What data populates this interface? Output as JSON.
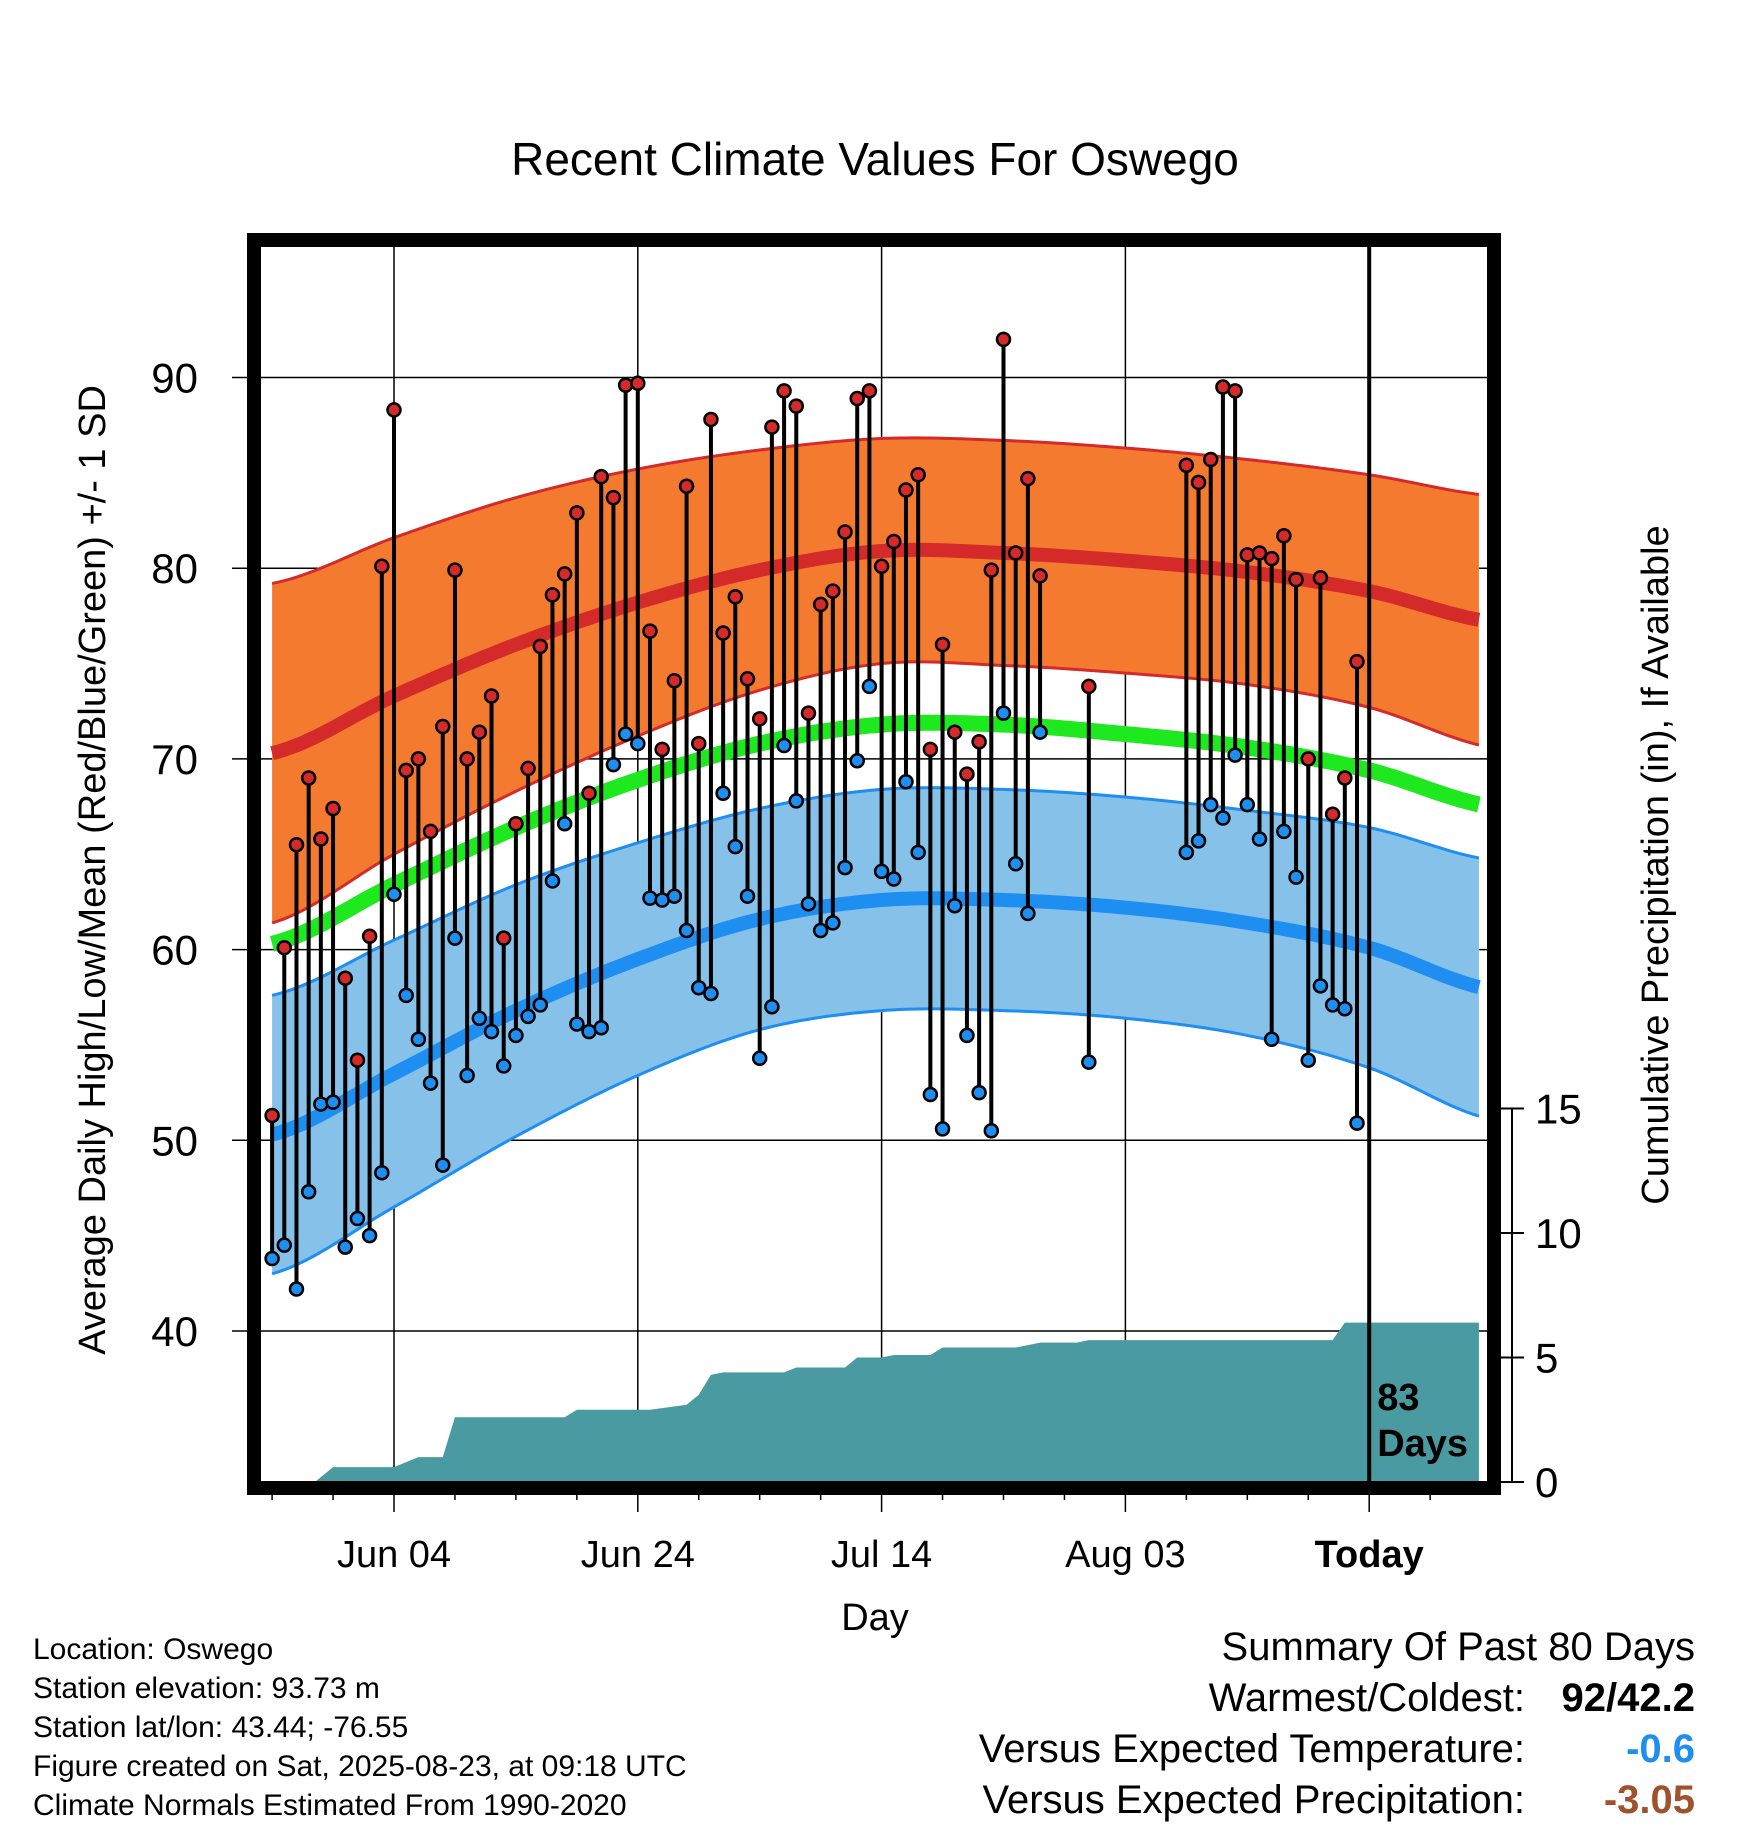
{
  "chart_data": {
    "type": "line",
    "title": "Recent Climate Values For Oswego",
    "xlabel": "Day",
    "ylabel": "Average Daily High/Low/Mean (Red/Blue/Green) +/- 1 SD",
    "y2label": "Cumulative Precipitation (in), If Available",
    "ylim": [
      32,
      98
    ],
    "y2lim": [
      0,
      38
    ],
    "xlim": [
      -12,
      88
    ],
    "x_ticks": [
      {
        "x": 0,
        "label": "Jun 04"
      },
      {
        "x": 20,
        "label": "Jun 24"
      },
      {
        "x": 40,
        "label": "Jul 14"
      },
      {
        "x": 60,
        "label": "Aug 03"
      },
      {
        "x": 80,
        "label": "Today"
      }
    ],
    "y_ticks": [
      40,
      50,
      60,
      70,
      80,
      90
    ],
    "y2_ticks": [
      0,
      5,
      10,
      15
    ],
    "today_x": 80,
    "today_annotation": [
      "83",
      "Days"
    ],
    "grid": true,
    "colors": {
      "high_band": "#f47a30",
      "high_line": "#d42a2a",
      "low_band": "#85c1e9",
      "low_line": "#1f8ef1",
      "mean_line": "#1ee81e",
      "precip": "#4a9ba1",
      "high_dot": "#d42a2a",
      "low_dot": "#1f8ef1"
    },
    "normals": [
      {
        "x": -10,
        "high": 70.3,
        "high_sd": 8.9,
        "low": 50.3,
        "low_sd": 7.3,
        "mean": 60.3
      },
      {
        "x": 0,
        "high": 73.3,
        "high_sd": 8.3,
        "low": 53.5,
        "low_sd": 7.0,
        "mean": 63.4
      },
      {
        "x": 10,
        "high": 76.0,
        "high_sd": 7.7,
        "low": 56.8,
        "low_sd": 6.6,
        "mean": 66.4
      },
      {
        "x": 20,
        "high": 78.2,
        "high_sd": 7.0,
        "low": 59.5,
        "low_sd": 6.1,
        "mean": 68.9
      },
      {
        "x": 30,
        "high": 79.9,
        "high_sd": 6.3,
        "low": 61.6,
        "low_sd": 5.8,
        "mean": 70.8
      },
      {
        "x": 40,
        "high": 80.9,
        "high_sd": 5.9,
        "low": 62.6,
        "low_sd": 5.8,
        "mean": 71.8
      },
      {
        "x": 50,
        "high": 80.8,
        "high_sd": 5.9,
        "low": 62.6,
        "low_sd": 5.8,
        "mean": 71.8
      },
      {
        "x": 60,
        "high": 80.4,
        "high_sd": 5.9,
        "low": 62.2,
        "low_sd": 5.8,
        "mean": 71.3
      },
      {
        "x": 70,
        "high": 79.8,
        "high_sd": 5.9,
        "low": 61.4,
        "low_sd": 5.9,
        "mean": 70.6
      },
      {
        "x": 80,
        "high": 78.8,
        "high_sd": 6.1,
        "low": 60.1,
        "low_sd": 6.3,
        "mean": 69.4
      },
      {
        "x": 90,
        "high": 77.2,
        "high_sd": 6.6,
        "low": 57.9,
        "low_sd": 6.8,
        "mean": 67.5
      }
    ],
    "daily": [
      {
        "x": -10,
        "high": 51.3,
        "low": 43.8
      },
      {
        "x": -9,
        "high": 60.1,
        "low": 44.5
      },
      {
        "x": -8,
        "high": 65.5,
        "low": 42.2
      },
      {
        "x": -7,
        "high": 69.0,
        "low": 47.3
      },
      {
        "x": -6,
        "high": 65.8,
        "low": 51.9
      },
      {
        "x": -5,
        "high": 67.4,
        "low": 52.0
      },
      {
        "x": -4,
        "high": 58.5,
        "low": 44.4
      },
      {
        "x": -3,
        "high": 54.2,
        "low": 45.9
      },
      {
        "x": -2,
        "high": 60.7,
        "low": 45.0
      },
      {
        "x": -1,
        "high": 80.1,
        "low": 48.3
      },
      {
        "x": 0,
        "high": 88.3,
        "low": 62.9
      },
      {
        "x": 1,
        "high": 69.4,
        "low": 57.6
      },
      {
        "x": 2,
        "high": 70.0,
        "low": 55.3
      },
      {
        "x": 3,
        "high": 66.2,
        "low": 53.0
      },
      {
        "x": 4,
        "high": 71.7,
        "low": 48.7
      },
      {
        "x": 5,
        "high": 79.9,
        "low": 60.6
      },
      {
        "x": 6,
        "high": 70.0,
        "low": 53.4
      },
      {
        "x": 7,
        "high": 71.4,
        "low": 56.4
      },
      {
        "x": 8,
        "high": 73.3,
        "low": 55.7
      },
      {
        "x": 9,
        "high": 60.6,
        "low": 53.9
      },
      {
        "x": 10,
        "high": 66.6,
        "low": 55.5
      },
      {
        "x": 11,
        "high": 69.5,
        "low": 56.5
      },
      {
        "x": 12,
        "high": 75.9,
        "low": 57.1
      },
      {
        "x": 13,
        "high": 78.6,
        "low": 63.6
      },
      {
        "x": 14,
        "high": 79.7,
        "low": 66.6
      },
      {
        "x": 15,
        "high": 82.9,
        "low": 56.1
      },
      {
        "x": 16,
        "high": 68.2,
        "low": 55.7
      },
      {
        "x": 17,
        "high": 84.8,
        "low": 55.9
      },
      {
        "x": 18,
        "high": 83.7,
        "low": 69.7
      },
      {
        "x": 19,
        "high": 89.6,
        "low": 71.3
      },
      {
        "x": 20,
        "high": 89.7,
        "low": 70.8
      },
      {
        "x": 21,
        "high": 76.7,
        "low": 62.7
      },
      {
        "x": 22,
        "high": 70.5,
        "low": 62.6
      },
      {
        "x": 23,
        "high": 74.1,
        "low": 62.8
      },
      {
        "x": 24,
        "high": 84.3,
        "low": 61.0
      },
      {
        "x": 25,
        "high": 70.8,
        "low": 58.0
      },
      {
        "x": 26,
        "high": 87.8,
        "low": 57.7
      },
      {
        "x": 27,
        "high": 76.6,
        "low": 68.2
      },
      {
        "x": 28,
        "high": 78.5,
        "low": 65.4
      },
      {
        "x": 29,
        "high": 74.2,
        "low": 62.8
      },
      {
        "x": 30,
        "high": 72.1,
        "low": 54.3
      },
      {
        "x": 31,
        "high": 87.4,
        "low": 57.0
      },
      {
        "x": 32,
        "high": 89.3,
        "low": 70.7
      },
      {
        "x": 33,
        "high": 88.5,
        "low": 67.8
      },
      {
        "x": 34,
        "high": 72.4,
        "low": 62.4
      },
      {
        "x": 35,
        "high": 78.1,
        "low": 61.0
      },
      {
        "x": 36,
        "high": 78.8,
        "low": 61.4
      },
      {
        "x": 37,
        "high": 81.9,
        "low": 64.3
      },
      {
        "x": 38,
        "high": 88.9,
        "low": 69.9
      },
      {
        "x": 39,
        "high": 89.3,
        "low": 73.8
      },
      {
        "x": 40,
        "high": 80.1,
        "low": 64.1
      },
      {
        "x": 41,
        "high": 81.4,
        "low": 63.7
      },
      {
        "x": 42,
        "high": 84.1,
        "low": 68.8
      },
      {
        "x": 43,
        "high": 84.9,
        "low": 65.1
      },
      {
        "x": 44,
        "high": 70.5,
        "low": 52.4
      },
      {
        "x": 45,
        "high": 76.0,
        "low": 50.6
      },
      {
        "x": 46,
        "high": 71.4,
        "low": 62.3
      },
      {
        "x": 47,
        "high": 69.2,
        "low": 55.5
      },
      {
        "x": 48,
        "high": 70.9,
        "low": 52.5
      },
      {
        "x": 49,
        "high": 79.9,
        "low": 50.5
      },
      {
        "x": 50,
        "high": 92.0,
        "low": 72.4
      },
      {
        "x": 51,
        "high": 80.8,
        "low": 64.5
      },
      {
        "x": 52,
        "high": 84.7,
        "low": 61.9
      },
      {
        "x": 53,
        "high": 79.6,
        "low": 71.4
      },
      {
        "x": 57,
        "high": 73.8,
        "low": 54.1
      },
      {
        "x": 65,
        "high": 85.4,
        "low": 65.1
      },
      {
        "x": 66,
        "high": 84.5,
        "low": 65.7
      },
      {
        "x": 67,
        "high": 85.7,
        "low": 67.6
      },
      {
        "x": 68,
        "high": 89.5,
        "low": 66.9
      },
      {
        "x": 69,
        "high": 89.3,
        "low": 70.2
      },
      {
        "x": 70,
        "high": 80.7,
        "low": 67.6
      },
      {
        "x": 71,
        "high": 80.8,
        "low": 65.8
      },
      {
        "x": 72,
        "high": 80.5,
        "low": 55.3
      },
      {
        "x": 73,
        "high": 81.7,
        "low": 66.2
      },
      {
        "x": 74,
        "high": 79.4,
        "low": 63.8
      },
      {
        "x": 75,
        "high": 70.0,
        "low": 54.2
      },
      {
        "x": 76,
        "high": 79.5,
        "low": 58.1
      },
      {
        "x": 77,
        "high": 67.1,
        "low": 57.1
      },
      {
        "x": 78,
        "high": 69.0,
        "low": 56.9
      },
      {
        "x": 79,
        "high": 75.1,
        "low": 50.9
      }
    ],
    "precip_cumulative": [
      {
        "x": -11,
        "y": 0
      },
      {
        "x": -6.5,
        "y": 0
      },
      {
        "x": -5,
        "y": 0.6
      },
      {
        "x": 0,
        "y": 0.6
      },
      {
        "x": 2,
        "y": 1.0
      },
      {
        "x": 4,
        "y": 1.0
      },
      {
        "x": 5,
        "y": 2.6
      },
      {
        "x": 14,
        "y": 2.6
      },
      {
        "x": 15,
        "y": 2.9
      },
      {
        "x": 21,
        "y": 2.9
      },
      {
        "x": 24,
        "y": 3.1
      },
      {
        "x": 25,
        "y": 3.5
      },
      {
        "x": 26,
        "y": 4.3
      },
      {
        "x": 27,
        "y": 4.4
      },
      {
        "x": 32,
        "y": 4.4
      },
      {
        "x": 33,
        "y": 4.6
      },
      {
        "x": 37,
        "y": 4.6
      },
      {
        "x": 38,
        "y": 5.0
      },
      {
        "x": 40,
        "y": 5.0
      },
      {
        "x": 41,
        "y": 5.1
      },
      {
        "x": 44,
        "y": 5.1
      },
      {
        "x": 45,
        "y": 5.4
      },
      {
        "x": 51,
        "y": 5.4
      },
      {
        "x": 53,
        "y": 5.6
      },
      {
        "x": 56,
        "y": 5.6
      },
      {
        "x": 57,
        "y": 5.7
      },
      {
        "x": 77,
        "y": 5.7
      },
      {
        "x": 78,
        "y": 6.4
      },
      {
        "x": 89,
        "y": 6.4
      }
    ]
  },
  "info": {
    "location": "Location: Oswego",
    "elevation": "Station elevation: 93.73 m",
    "latlon": "Station lat/lon: 43.44; -76.55",
    "created": "Figure created on Sat, 2025-08-23, at 09:18 UTC",
    "normals": "Climate Normals Estimated From 1990-2020"
  },
  "summary": {
    "title": "Summary Of Past 80 Days",
    "warm_cold_label": "Warmest/Coldest:",
    "warm_cold_value": "92/42.2",
    "temp_label": "Versus Expected Temperature:",
    "temp_value": "-0.6",
    "temp_color": "#1f8ef1",
    "precip_label": "Versus Expected Precipitation:",
    "precip_value": "-3.05",
    "precip_color": "#a0522d"
  }
}
